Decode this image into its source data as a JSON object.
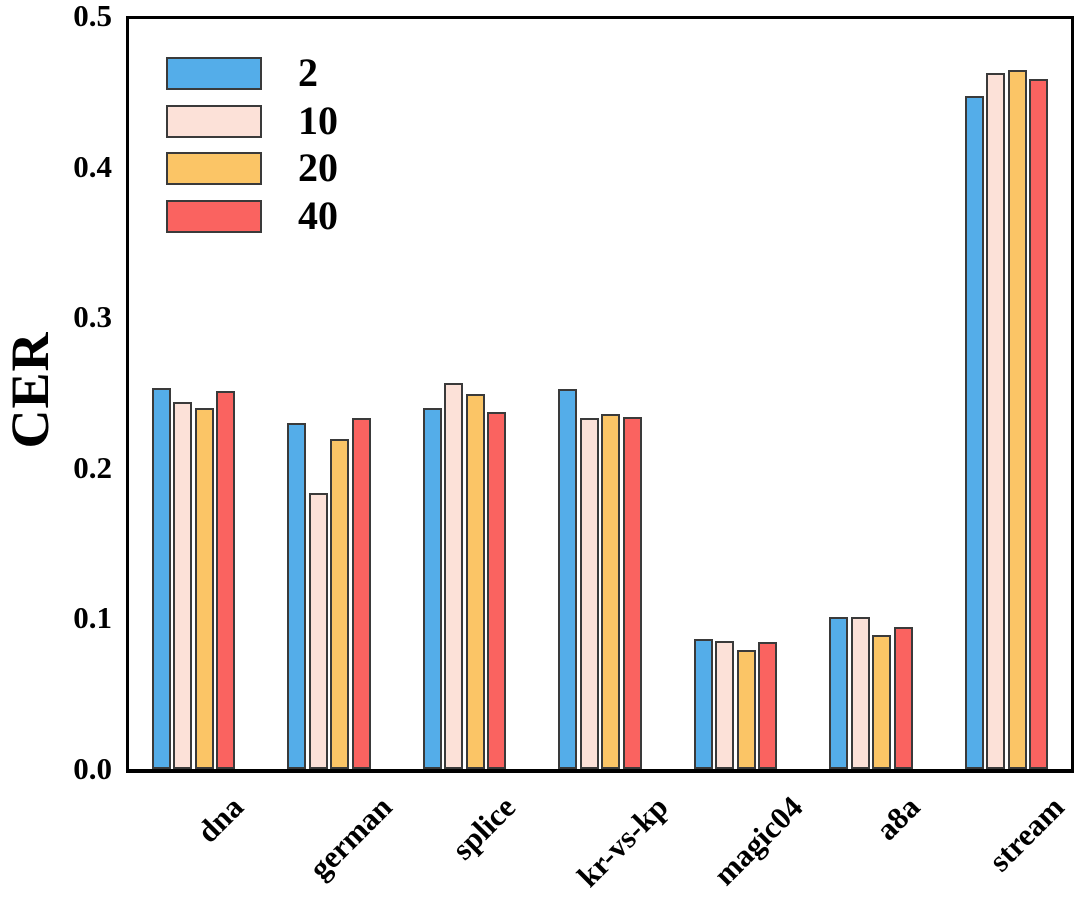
{
  "chart_data": {
    "type": "bar",
    "title": "",
    "xlabel": "",
    "ylabel": "CER",
    "ylim": [
      0,
      0.5
    ],
    "yticks": [
      "0.0",
      "0.1",
      "0.2",
      "0.3",
      "0.4",
      "0.5"
    ],
    "ytick_values": [
      0.0,
      0.1,
      0.2,
      0.3,
      0.4,
      0.5
    ],
    "grid": false,
    "legend_position": "upper-left",
    "categories": [
      "dna",
      "german",
      "splice",
      "kr-vs-kp",
      "magic04",
      "a8a",
      "stream"
    ],
    "series": [
      {
        "name": "2",
        "color": "#54ADE9",
        "values": [
          0.253,
          0.23,
          0.24,
          0.252,
          0.086,
          0.101,
          0.447
        ]
      },
      {
        "name": "10",
        "color": "#FCE1D8",
        "values": [
          0.244,
          0.183,
          0.256,
          0.233,
          0.085,
          0.101,
          0.462
        ]
      },
      {
        "name": "20",
        "color": "#FBC566",
        "values": [
          0.24,
          0.219,
          0.249,
          0.236,
          0.079,
          0.089,
          0.464
        ]
      },
      {
        "name": "40",
        "color": "#FA6360",
        "values": [
          0.251,
          0.233,
          0.237,
          0.234,
          0.084,
          0.094,
          0.458
        ]
      }
    ],
    "bar_edge_color": "#3a3a3a",
    "axis_color": "#000000",
    "background_color": "#ffffff"
  }
}
